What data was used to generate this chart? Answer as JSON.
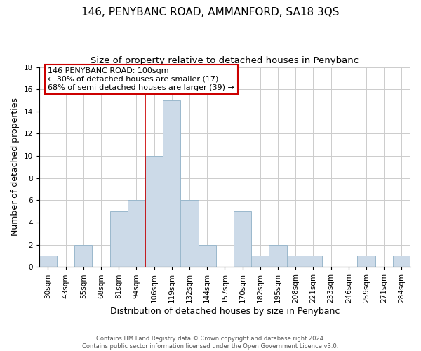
{
  "title": "146, PENYBANC ROAD, AMMANFORD, SA18 3QS",
  "subtitle": "Size of property relative to detached houses in Penybanc",
  "xlabel": "Distribution of detached houses by size in Penybanc",
  "ylabel": "Number of detached properties",
  "footer1": "Contains HM Land Registry data © Crown copyright and database right 2024.",
  "footer2": "Contains public sector information licensed under the Open Government Licence v3.0.",
  "bin_labels": [
    "30sqm",
    "43sqm",
    "55sqm",
    "68sqm",
    "81sqm",
    "94sqm",
    "106sqm",
    "119sqm",
    "132sqm",
    "144sqm",
    "157sqm",
    "170sqm",
    "182sqm",
    "195sqm",
    "208sqm",
    "221sqm",
    "233sqm",
    "246sqm",
    "259sqm",
    "271sqm",
    "284sqm"
  ],
  "bin_counts": [
    1,
    0,
    2,
    0,
    5,
    6,
    10,
    15,
    6,
    2,
    0,
    5,
    1,
    2,
    1,
    1,
    0,
    0,
    1,
    0,
    1
  ],
  "bar_color": "#ccdae8",
  "bar_edge_color": "#9ab8cc",
  "highlight_line_color": "#cc0000",
  "highlight_line_index": 6,
  "annotation_text": "146 PENYBANC ROAD: 100sqm\n← 30% of detached houses are smaller (17)\n68% of semi-detached houses are larger (39) →",
  "annotation_box_edgecolor": "#cc0000",
  "ylim": [
    0,
    18
  ],
  "yticks": [
    0,
    2,
    4,
    6,
    8,
    10,
    12,
    14,
    16,
    18
  ],
  "grid_color": "#cccccc",
  "background_color": "#ffffff",
  "title_fontsize": 11,
  "subtitle_fontsize": 9.5,
  "xlabel_fontsize": 9,
  "ylabel_fontsize": 9,
  "tick_fontsize": 7.5,
  "footer_fontsize": 6,
  "annot_fontsize": 8
}
